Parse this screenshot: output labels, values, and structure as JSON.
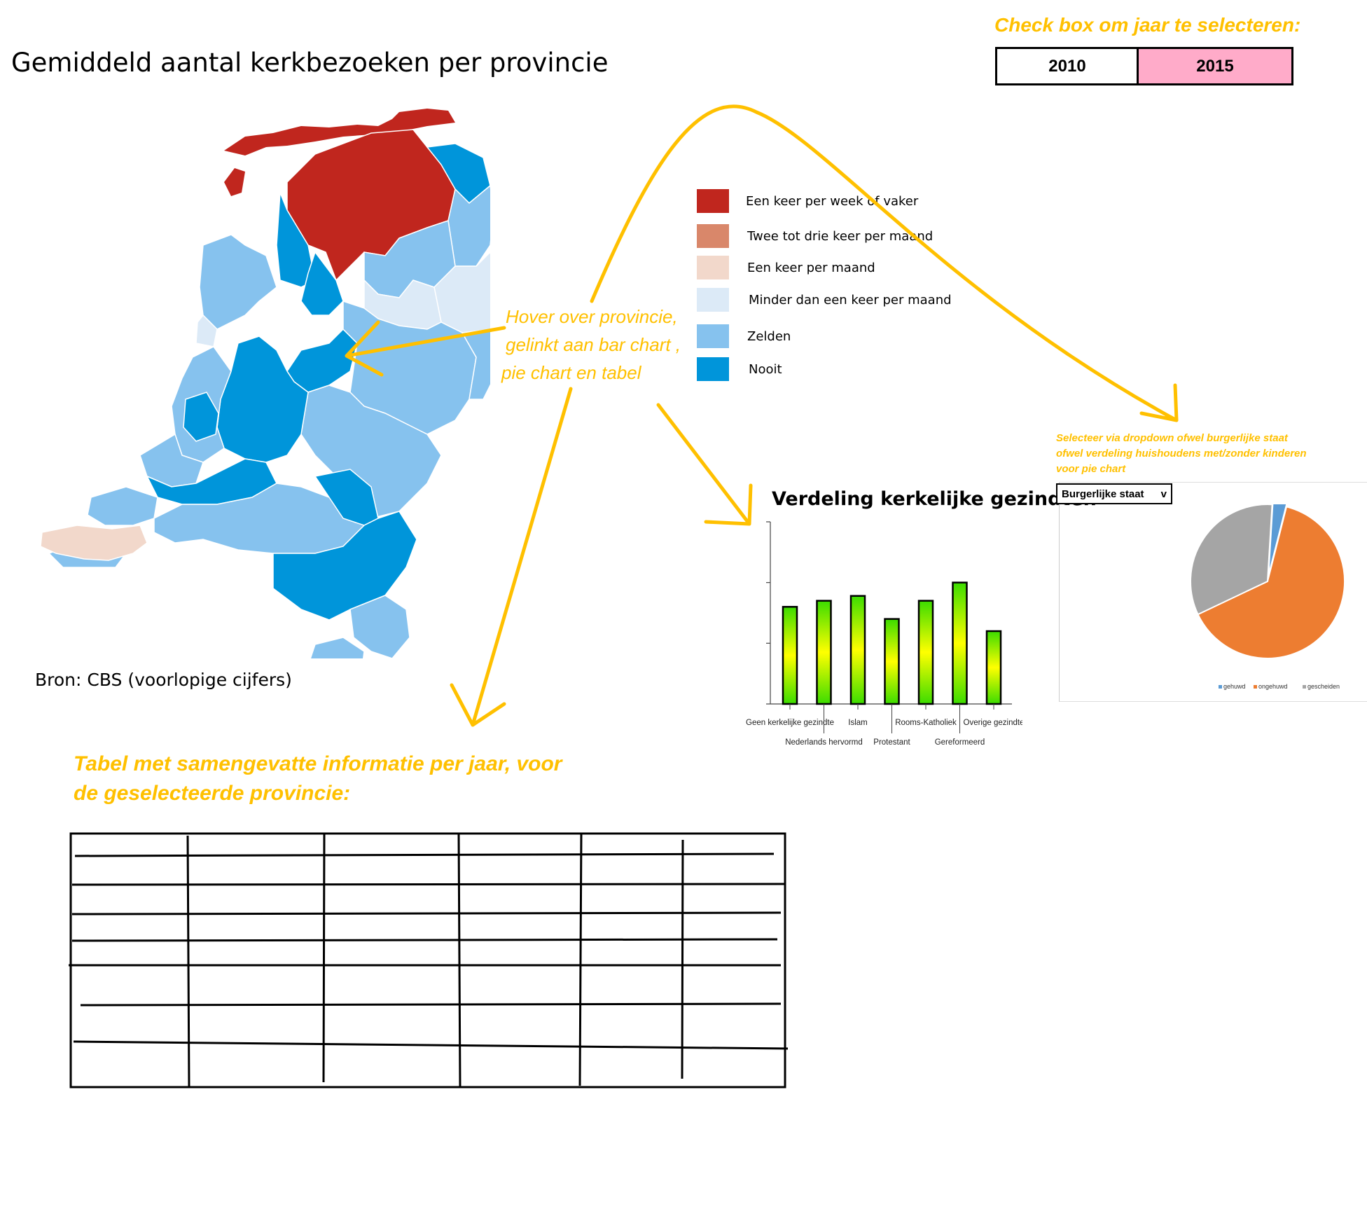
{
  "page_title": "Gemiddeld aantal kerkbezoeken per provincie",
  "year_selector": {
    "label": "Check box om jaar te selecteren:",
    "years": [
      "2010",
      "2015"
    ],
    "selected": "2015"
  },
  "legend": [
    {
      "label": "Een keer per week of vaker",
      "color": "#C0261E"
    },
    {
      "label": "Twee tot drie keer per maand",
      "color": "#D9876A"
    },
    {
      "label": "Een keer per maand",
      "color": "#F2D8CB"
    },
    {
      "label": "Minder dan een keer per maand",
      "color": "#DCEAF7"
    },
    {
      "label": "Zelden",
      "color": "#86C2EE"
    },
    {
      "label": "Nooit",
      "color": "#0095DA"
    }
  ],
  "hover_note": [
    "Hover over provincie,",
    "gelinkt aan bar chart ,",
    "pie chart en tabel"
  ],
  "source": "Bron: CBS (voorlopige cijfers)",
  "table_note": [
    "Tabel met samengevatte informatie per jaar, voor",
    "de geselecteerde provincie:"
  ],
  "pie_note": [
    "Selecteer via dropdown ofwel burgerlijke staat",
    "ofwel verdeling huishoudens met/zonder kinderen",
    "voor pie chart"
  ],
  "dropdown": {
    "value": "Burgerlijke staat",
    "arrow": "v"
  },
  "accent_color": "#FFC000",
  "chart_data": [
    {
      "type": "bar",
      "title": "Verdeling kerkelijke gezindten",
      "categories": [
        "Geen kerkelijke gezindte",
        "Nederlands hervormd",
        "Islam",
        "Protestant",
        "Rooms-Katholiek",
        "Gereformeerd",
        "Overige gezindte"
      ],
      "values": [
        0.8,
        0.85,
        0.89,
        0.7,
        0.85,
        1.0,
        0.6
      ],
      "ylim": [
        0,
        1.5
      ],
      "grid": false,
      "bar_fill": "gradient green-yellow"
    },
    {
      "type": "pie",
      "categories": [
        "gehuwd",
        "ongehuwd",
        "gescheiden"
      ],
      "values": [
        3,
        64,
        33
      ],
      "colors": [
        "#5B9BD5",
        "#ED7D31",
        "#A5A5A5"
      ],
      "legend_position": "bottom"
    }
  ]
}
